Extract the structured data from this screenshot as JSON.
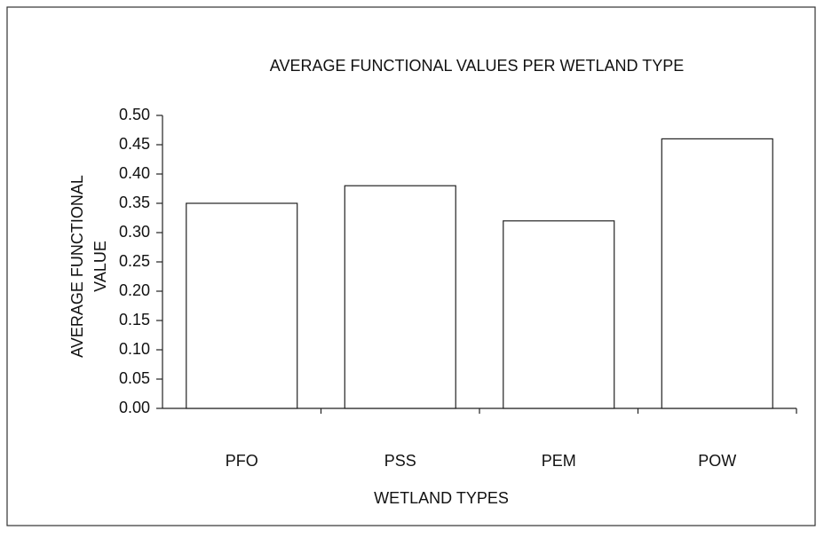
{
  "chart_data": {
    "type": "bar",
    "title": "AVERAGE FUNCTIONAL VALUES PER WETLAND TYPE",
    "xlabel": "WETLAND TYPES",
    "ylabel": [
      "AVERAGE FUNCTIONAL",
      "VALUE"
    ],
    "categories": [
      "PFO",
      "PSS",
      "PEM",
      "POW"
    ],
    "values": [
      0.35,
      0.38,
      0.32,
      0.46
    ],
    "color": "#ffffff",
    "ylim": [
      0,
      0.5
    ],
    "yticks": [
      {
        "value": 0,
        "label": "0.00"
      },
      0.05,
      {
        "value": 0.1,
        "label": "0.10"
      },
      0.15,
      {
        "value": 0.2,
        "label": "0.20"
      },
      0.25,
      {
        "value": 0.3,
        "label": "0.30"
      },
      0.35,
      {
        "value": 0.4,
        "label": "0.40"
      },
      0.45,
      {
        "value": 0.5,
        "label": "0.50"
      }
    ],
    "grid": false
  }
}
